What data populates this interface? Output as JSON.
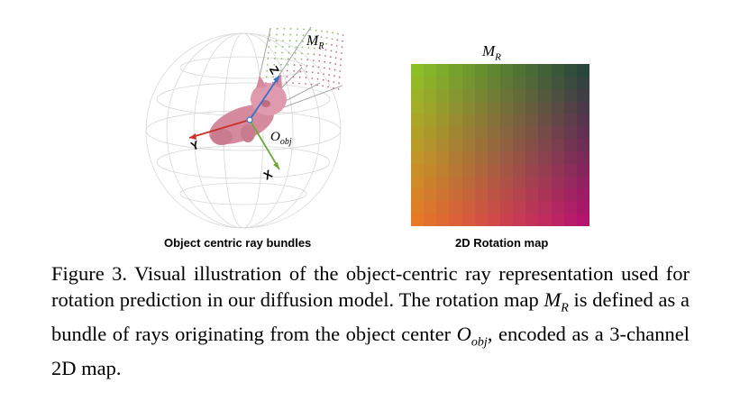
{
  "figure": {
    "left_panel": {
      "label": "Object centric ray bundles",
      "manifold_label": "M",
      "manifold_sub": "R",
      "axis_z": "Z",
      "axis_y": "Y",
      "axis_x": "X",
      "origin_label": "O",
      "origin_sub": "obj"
    },
    "right_panel": {
      "label": "2D Rotation map",
      "map_title": "M",
      "map_title_sub": "R"
    },
    "colors": {
      "axis_z": "#3a6fc9",
      "axis_y": "#c8302a",
      "axis_x": "#6aa83c",
      "object": "#d58a9e"
    }
  },
  "caption": {
    "part1": "Figure 3.  Visual illustration of the object-centric ray representation used for rotation prediction in our diffusion model. The rotation map ",
    "math1": "M",
    "math1_sub": "R",
    "part2": " is defined as a bundle of rays originating from the object center ",
    "math2": "O",
    "math2_sub": "obj",
    "part3": ", encoded as a 3-channel 2D map."
  }
}
